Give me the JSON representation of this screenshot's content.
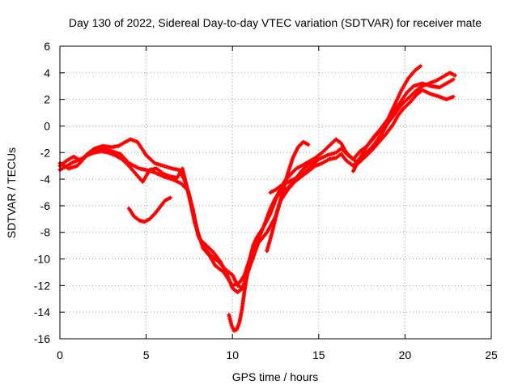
{
  "chart_data": {
    "type": "scatter",
    "title": "Day 130 of 2022, Sidereal Day-to-day VTEC variation (SDTVAR) for receiver mate",
    "xlabel": "GPS time / hours",
    "ylabel": "SDTVAR / TECUs",
    "xlim": [
      0,
      25
    ],
    "ylim": [
      -16,
      6
    ],
    "x_ticks": [
      0,
      5,
      10,
      15,
      20,
      25
    ],
    "y_ticks": [
      -16,
      -14,
      -12,
      -10,
      -8,
      -6,
      -4,
      -2,
      0,
      2,
      4,
      6
    ],
    "grid": true,
    "legend": "none",
    "marker": "plus",
    "colors": {
      "series": "#ff0000",
      "grid": "#a0a0a0",
      "axis": "#000000"
    },
    "series": [
      {
        "x": [
          0.0,
          0.4,
          0.8,
          1.2,
          1.6,
          2.0,
          2.5,
          3.0,
          3.4,
          3.8,
          4.1,
          4.5,
          5.0,
          5.5,
          6.0,
          6.5,
          6.9,
          7.2,
          7.5,
          7.8,
          8.1,
          8.5,
          8.9,
          9.3,
          9.7,
          10.0,
          10.3,
          10.6,
          11.0,
          11.4,
          11.8,
          12.2,
          12.6,
          13.0,
          13.4,
          13.7,
          14.0,
          14.4,
          14.8,
          15.2,
          15.6,
          16.0,
          16.3,
          16.6,
          17.0,
          17.4,
          17.8,
          18.2,
          18.6,
          19.0,
          19.4,
          19.8,
          20.1,
          20.5,
          21.0,
          21.5,
          22.0,
          22.4,
          22.8
        ],
        "y": [
          -3.0,
          -2.6,
          -2.3,
          -2.6,
          -2.1,
          -1.7,
          -1.5,
          -1.6,
          -1.5,
          -1.2,
          -1.0,
          -1.2,
          -2.2,
          -2.8,
          -3.0,
          -3.2,
          -3.3,
          -4.0,
          -5.2,
          -7.2,
          -8.5,
          -9.0,
          -9.5,
          -10.2,
          -11.2,
          -12.2,
          -12.5,
          -12.2,
          -10.2,
          -8.8,
          -7.6,
          -6.6,
          -5.2,
          -4.2,
          -3.6,
          -3.2,
          -3.0,
          -2.7,
          -2.4,
          -2.0,
          -1.5,
          -1.0,
          -1.3,
          -2.0,
          -2.5,
          -1.9,
          -1.5,
          -0.9,
          -0.3,
          0.4,
          1.2,
          1.9,
          2.5,
          3.0,
          3.2,
          3.0,
          2.9,
          3.2,
          3.5
        ]
      },
      {
        "x": [
          0.0,
          0.5,
          1.0,
          1.5,
          2.0,
          2.5,
          3.0,
          3.5,
          4.0,
          4.3,
          4.6,
          5.0,
          5.5,
          6.0,
          6.5,
          7.0,
          7.4,
          7.7,
          8.0,
          8.3,
          8.7,
          9.0,
          9.5,
          10.0,
          10.4,
          10.7,
          11.0,
          11.4,
          11.8,
          12.2,
          12.5,
          12.8,
          13.2,
          13.5,
          13.8,
          14.2,
          14.6,
          15.0,
          15.5,
          16.0,
          16.3,
          16.7,
          17.0,
          17.3,
          17.7,
          18.1,
          18.5,
          18.9,
          19.3,
          19.6,
          19.9,
          20.3,
          20.7,
          21.0,
          21.5,
          22.0,
          22.4,
          22.8
        ],
        "y": [
          -2.8,
          -3.2,
          -3.0,
          -2.3,
          -1.8,
          -1.7,
          -1.9,
          -2.1,
          -2.8,
          -3.0,
          -3.2,
          -3.3,
          -3.5,
          -3.8,
          -4.0,
          -4.3,
          -4.8,
          -6.5,
          -8.0,
          -9.2,
          -9.8,
          -10.5,
          -11.0,
          -12.0,
          -11.8,
          -11.2,
          -10.0,
          -8.4,
          -7.6,
          -6.2,
          -5.4,
          -5.0,
          -4.7,
          -4.2,
          -3.8,
          -3.5,
          -3.0,
          -2.5,
          -2.2,
          -2.0,
          -1.7,
          -2.2,
          -2.5,
          -2.8,
          -2.3,
          -1.8,
          -1.2,
          -0.6,
          0.1,
          0.8,
          1.3,
          1.8,
          2.4,
          2.7,
          2.4,
          2.2,
          2.0,
          2.2
        ]
      },
      {
        "x": [
          0.0,
          0.4,
          0.8,
          1.2,
          1.6,
          2.0,
          2.4,
          2.8,
          3.2,
          3.6,
          4.0,
          4.4,
          4.8,
          5.2,
          5.6,
          6.0,
          6.4,
          6.8,
          7.1,
          7.4,
          7.7,
          8.0,
          8.4,
          8.8,
          9.2,
          9.6,
          10.0,
          10.3,
          10.6,
          11.0,
          11.5,
          12.0,
          12.5,
          12.8,
          13.2,
          13.6,
          14.0,
          14.4,
          14.8,
          15.2,
          15.6,
          16.0,
          16.3,
          16.6,
          17.0,
          17.4,
          17.8,
          18.2,
          18.6,
          19.0,
          19.4,
          19.8,
          20.2,
          20.6,
          21.0,
          21.4,
          21.8,
          22.2,
          22.6,
          22.9
        ],
        "y": [
          -3.3,
          -3.0,
          -2.7,
          -2.5,
          -2.2,
          -2.0,
          -1.9,
          -2.0,
          -2.2,
          -2.5,
          -3.0,
          -3.6,
          -4.2,
          -3.3,
          -3.2,
          -3.6,
          -3.8,
          -3.9,
          -3.2,
          -4.8,
          -6.2,
          -8.2,
          -9.2,
          -9.8,
          -10.2,
          -10.8,
          -11.2,
          -12.0,
          -12.2,
          -10.6,
          -8.8,
          -8.0,
          -6.8,
          -5.6,
          -4.8,
          -4.2,
          -3.8,
          -3.4,
          -3.0,
          -2.8,
          -2.5,
          -2.4,
          -2.1,
          -2.6,
          -3.0,
          -2.4,
          -2.0,
          -1.4,
          -0.7,
          0.2,
          0.9,
          1.6,
          2.1,
          2.6,
          3.0,
          3.2,
          3.4,
          3.7,
          4.0,
          3.8
        ]
      },
      {
        "x": [
          4.0,
          4.3,
          4.6,
          4.9,
          5.2,
          5.5,
          5.8,
          6.1,
          6.4
        ],
        "y": [
          -6.2,
          -6.8,
          -7.1,
          -7.2,
          -7.0,
          -6.6,
          -6.1,
          -5.6,
          -5.4
        ]
      },
      {
        "x": [
          9.8,
          9.95,
          10.1,
          10.25,
          10.4,
          10.55,
          10.7,
          10.85,
          11.0,
          11.2,
          11.4
        ],
        "y": [
          -14.2,
          -15.0,
          -15.4,
          -15.3,
          -14.8,
          -13.8,
          -12.4,
          -11.2,
          -10.0,
          -9.0,
          -8.4
        ]
      },
      {
        "x": [
          12.2,
          12.5,
          12.8,
          13.1,
          13.4,
          13.7,
          14.0,
          14.3,
          14.6,
          14.9
        ],
        "y": [
          -5.0,
          -4.8,
          -4.5,
          -4.3,
          -4.1,
          -3.9,
          -3.4,
          -3.0,
          -2.7,
          -2.4
        ]
      },
      {
        "x": [
          12.0,
          12.3,
          12.6,
          12.9,
          13.2,
          13.5,
          13.8,
          14.1,
          14.4
        ],
        "y": [
          -9.4,
          -8.0,
          -6.4,
          -5.0,
          -3.6,
          -2.4,
          -1.6,
          -1.2,
          -1.4
        ]
      },
      {
        "x": [
          17.0,
          17.4,
          17.8,
          18.2,
          18.6,
          19.0,
          19.4,
          19.8,
          20.2,
          20.6,
          20.9
        ],
        "y": [
          -3.4,
          -2.4,
          -1.5,
          -0.8,
          -0.2,
          0.5,
          1.6,
          2.7,
          3.6,
          4.2,
          4.5
        ]
      }
    ]
  }
}
